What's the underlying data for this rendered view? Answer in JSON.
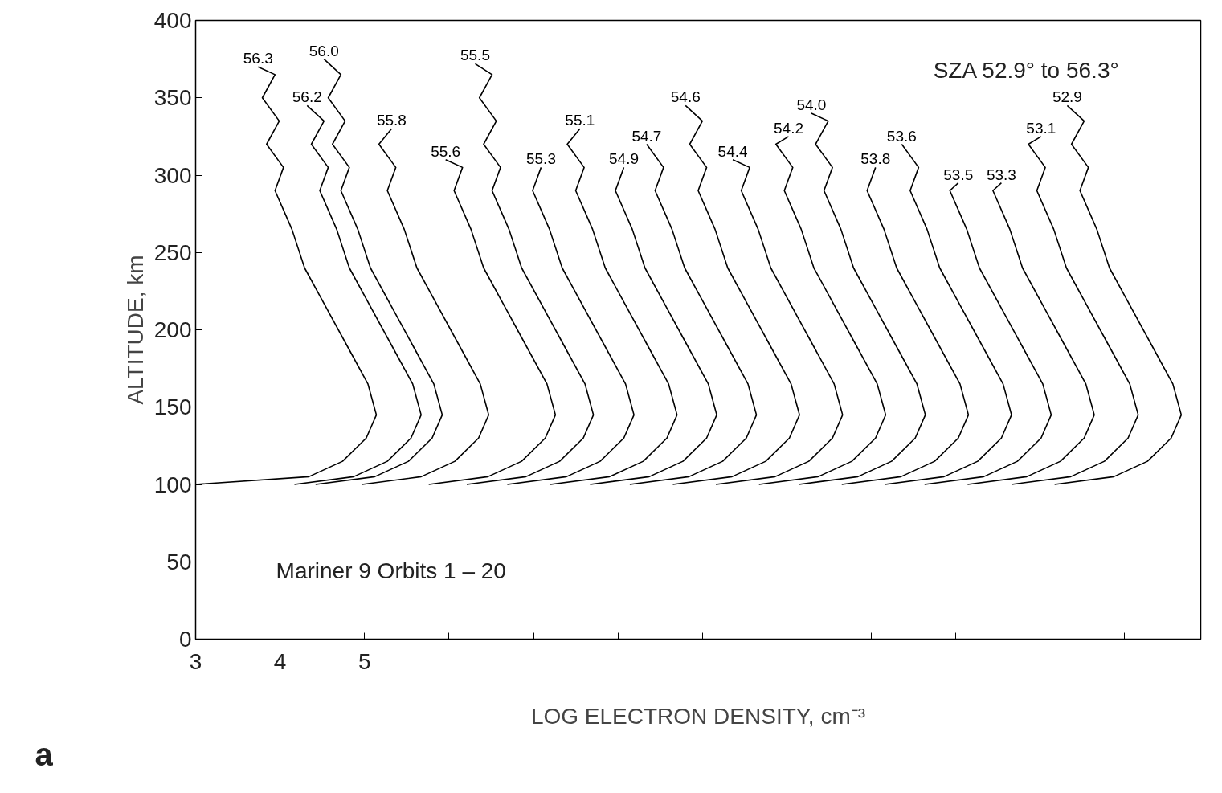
{
  "chart_data": {
    "type": "line",
    "xlabel": "LOG ELECTRON DENSITY, cm⁻³",
    "ylabel": "ALTITUDE, km",
    "annotations": [
      "SZA  52.9° to 56.3°",
      "Mariner 9  Orbits 1 – 20",
      "a"
    ],
    "xlim": [
      3,
      14.9
    ],
    "ylim": [
      0,
      400
    ],
    "xticks": [
      3,
      4,
      5,
      {
        "value": 6,
        "label": null
      },
      {
        "value": 7,
        "label": null
      },
      {
        "value": 8,
        "label": null
      },
      {
        "value": 9,
        "label": null
      },
      {
        "value": 10,
        "label": null
      },
      {
        "value": 11,
        "label": null
      },
      {
        "value": 12,
        "label": null
      },
      {
        "value": 13,
        "label": null
      },
      {
        "value": 14,
        "label": null
      }
    ],
    "yticks": [
      0,
      50,
      100,
      150,
      200,
      250,
      300,
      350,
      400
    ],
    "grid": false,
    "legend": false,
    "marker": "none",
    "line_style": "solid",
    "series": [
      {
        "name": "56.3",
        "color": "#000000",
        "x": [
          3.0,
          4.34,
          4.74,
          5.02,
          5.14,
          5.04,
          4.79,
          4.54,
          4.29,
          4.14,
          3.94,
          4.04,
          3.84,
          3.99,
          3.79,
          3.94,
          3.74
        ],
        "values": [
          100,
          105,
          115,
          130,
          145,
          165,
          190,
          215,
          240,
          265,
          290,
          305,
          320,
          335,
          350,
          365,
          370
        ]
      },
      {
        "name": "56.2",
        "color": "#000000",
        "x": [
          4.17,
          4.87,
          5.27,
          5.55,
          5.67,
          5.57,
          5.32,
          5.07,
          4.82,
          4.67,
          4.47,
          4.57,
          4.37,
          4.52,
          4.32
        ],
        "values": [
          100,
          105,
          115,
          130,
          145,
          165,
          190,
          215,
          240,
          265,
          290,
          305,
          320,
          335,
          345
        ]
      },
      {
        "name": "56.0",
        "color": "#000000",
        "x": [
          4.42,
          5.12,
          5.52,
          5.8,
          5.92,
          5.82,
          5.57,
          5.32,
          5.07,
          4.92,
          4.72,
          4.82,
          4.62,
          4.77,
          4.57,
          4.72,
          4.52
        ],
        "values": [
          100,
          105,
          115,
          130,
          145,
          165,
          190,
          215,
          240,
          265,
          290,
          305,
          320,
          335,
          350,
          365,
          375
        ]
      },
      {
        "name": "55.8",
        "color": "#000000",
        "x": [
          4.97,
          5.67,
          6.07,
          6.35,
          6.47,
          6.37,
          6.12,
          5.87,
          5.62,
          5.47,
          5.27,
          5.37,
          5.17,
          5.32
        ],
        "values": [
          100,
          105,
          115,
          130,
          145,
          165,
          190,
          215,
          240,
          265,
          290,
          305,
          320,
          330
        ]
      },
      {
        "name": "55.6",
        "color": "#000000",
        "x": [
          5.76,
          6.46,
          6.86,
          7.14,
          7.26,
          7.16,
          6.91,
          6.66,
          6.41,
          6.26,
          6.06,
          6.16,
          5.96
        ],
        "values": [
          100,
          105,
          115,
          130,
          145,
          165,
          190,
          215,
          240,
          265,
          290,
          305,
          310
        ]
      },
      {
        "name": "55.5",
        "color": "#000000",
        "x": [
          6.21,
          6.91,
          7.31,
          7.59,
          7.71,
          7.61,
          7.36,
          7.11,
          6.86,
          6.71,
          6.51,
          6.61,
          6.41,
          6.56,
          6.36,
          6.51,
          6.31
        ],
        "values": [
          100,
          105,
          115,
          130,
          145,
          165,
          190,
          215,
          240,
          265,
          290,
          305,
          320,
          335,
          350,
          365,
          372
        ]
      },
      {
        "name": "55.3",
        "color": "#000000",
        "x": [
          6.69,
          7.39,
          7.79,
          8.07,
          8.19,
          8.09,
          7.84,
          7.59,
          7.34,
          7.19,
          6.99,
          7.09
        ],
        "values": [
          100,
          105,
          115,
          130,
          145,
          165,
          190,
          215,
          240,
          265,
          290,
          305
        ]
      },
      {
        "name": "55.1",
        "color": "#000000",
        "x": [
          7.2,
          7.9,
          8.3,
          8.58,
          8.7,
          8.6,
          8.35,
          8.1,
          7.85,
          7.7,
          7.5,
          7.6,
          7.4,
          7.55
        ],
        "values": [
          100,
          105,
          115,
          130,
          145,
          165,
          190,
          215,
          240,
          265,
          290,
          305,
          320,
          330
        ]
      },
      {
        "name": "54.9",
        "color": "#000000",
        "x": [
          7.67,
          8.37,
          8.77,
          9.05,
          9.17,
          9.07,
          8.82,
          8.57,
          8.32,
          8.17,
          7.97,
          8.07
        ],
        "values": [
          100,
          105,
          115,
          130,
          145,
          165,
          190,
          215,
          240,
          265,
          290,
          305
        ]
      },
      {
        "name": "54.7",
        "color": "#000000",
        "x": [
          8.14,
          8.84,
          9.24,
          9.52,
          9.64,
          9.54,
          9.29,
          9.04,
          8.79,
          8.64,
          8.44,
          8.54,
          8.34
        ],
        "values": [
          100,
          105,
          115,
          130,
          145,
          165,
          190,
          215,
          240,
          265,
          290,
          305,
          320
        ]
      },
      {
        "name": "54.6",
        "color": "#000000",
        "x": [
          8.65,
          9.35,
          9.75,
          10.03,
          10.15,
          10.05,
          9.8,
          9.55,
          9.3,
          9.15,
          8.95,
          9.05,
          8.85,
          9.0,
          8.8
        ],
        "values": [
          100,
          105,
          115,
          130,
          145,
          165,
          190,
          215,
          240,
          265,
          290,
          305,
          320,
          335,
          345
        ]
      },
      {
        "name": "54.4",
        "color": "#000000",
        "x": [
          9.16,
          9.86,
          10.26,
          10.54,
          10.66,
          10.56,
          10.31,
          10.06,
          9.81,
          9.66,
          9.46,
          9.56,
          9.36
        ],
        "values": [
          100,
          105,
          115,
          130,
          145,
          165,
          190,
          215,
          240,
          265,
          290,
          305,
          310
        ]
      },
      {
        "name": "54.2",
        "color": "#000000",
        "x": [
          9.67,
          10.37,
          10.77,
          11.05,
          11.17,
          11.07,
          10.82,
          10.57,
          10.32,
          10.17,
          9.97,
          10.07,
          9.87,
          10.02
        ],
        "values": [
          100,
          105,
          115,
          130,
          145,
          165,
          190,
          215,
          240,
          265,
          290,
          305,
          320,
          325
        ]
      },
      {
        "name": "54.0",
        "color": "#000000",
        "x": [
          10.14,
          10.84,
          11.24,
          11.52,
          11.64,
          11.54,
          11.29,
          11.04,
          10.79,
          10.64,
          10.44,
          10.54,
          10.34,
          10.49,
          10.29
        ],
        "values": [
          100,
          105,
          115,
          130,
          145,
          165,
          190,
          215,
          240,
          265,
          290,
          305,
          320,
          335,
          340
        ]
      },
      {
        "name": "53.8",
        "color": "#000000",
        "x": [
          10.65,
          11.35,
          11.75,
          12.03,
          12.15,
          12.05,
          11.8,
          11.55,
          11.3,
          11.15,
          10.95,
          11.05
        ],
        "values": [
          100,
          105,
          115,
          130,
          145,
          165,
          190,
          215,
          240,
          265,
          290,
          305
        ]
      },
      {
        "name": "53.6",
        "color": "#000000",
        "x": [
          11.16,
          11.86,
          12.26,
          12.54,
          12.66,
          12.56,
          12.31,
          12.06,
          11.81,
          11.66,
          11.46,
          11.56,
          11.36
        ],
        "values": [
          100,
          105,
          115,
          130,
          145,
          165,
          190,
          215,
          240,
          265,
          290,
          305,
          320
        ]
      },
      {
        "name": "53.5",
        "color": "#000000",
        "x": [
          11.63,
          12.33,
          12.73,
          13.01,
          13.13,
          13.03,
          12.78,
          12.53,
          12.28,
          12.13,
          11.93,
          12.03
        ],
        "values": [
          100,
          105,
          115,
          130,
          145,
          165,
          190,
          215,
          240,
          265,
          290,
          295
        ]
      },
      {
        "name": "53.3",
        "color": "#000000",
        "x": [
          12.14,
          12.84,
          13.24,
          13.52,
          13.64,
          13.54,
          13.29,
          13.04,
          12.79,
          12.64,
          12.44,
          12.54
        ],
        "values": [
          100,
          105,
          115,
          130,
          145,
          165,
          190,
          215,
          240,
          265,
          290,
          295
        ]
      },
      {
        "name": "53.1",
        "color": "#000000",
        "x": [
          12.66,
          13.36,
          13.76,
          14.04,
          14.16,
          14.06,
          13.81,
          13.56,
          13.31,
          13.16,
          12.96,
          13.06,
          12.86,
          13.01
        ],
        "values": [
          100,
          105,
          115,
          130,
          145,
          165,
          190,
          215,
          240,
          265,
          290,
          305,
          320,
          325
        ]
      },
      {
        "name": "52.9",
        "color": "#000000",
        "x": [
          13.17,
          13.87,
          14.27,
          14.55,
          14.67,
          14.57,
          14.32,
          14.07,
          13.82,
          13.67,
          13.47,
          13.57,
          13.37,
          13.52,
          13.32
        ],
        "values": [
          100,
          105,
          115,
          130,
          145,
          165,
          190,
          215,
          240,
          265,
          290,
          305,
          320,
          335,
          345
        ]
      }
    ]
  }
}
